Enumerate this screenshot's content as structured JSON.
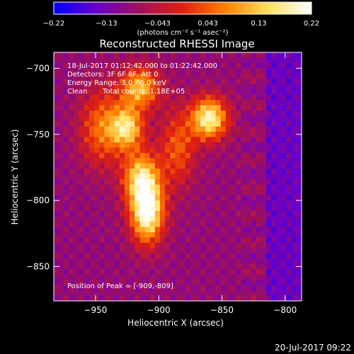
{
  "chart_data": {
    "type": "heatmap",
    "title": "Reconstructed RHESSI Image",
    "xlabel": "Heliocentric X (arcsec)",
    "ylabel": "Heliocentric Y (arcsec)",
    "xlim": [
      -983,
      -787
    ],
    "ylim": [
      -876,
      -688
    ],
    "xticks": [
      -950,
      -900,
      -850,
      -800
    ],
    "yticks": [
      -700,
      -750,
      -800,
      -850
    ],
    "xtick_labels": [
      "−950",
      "−900",
      "−850",
      "−800"
    ],
    "ytick_labels": [
      "−700",
      "−750",
      "−800",
      "−850"
    ],
    "colorbar": {
      "min": -0.22,
      "max": 0.22,
      "ticks": [
        -0.22,
        -0.13,
        -0.043,
        0.043,
        0.13,
        0.22
      ],
      "tick_labels": [
        "−0.22",
        "−0.13",
        "−0.043",
        "0.043",
        "0.13",
        "0.22"
      ],
      "unit_label": "(photons cm⁻² s⁻¹ asec⁻²)",
      "colormap": [
        "#0000ff",
        "#6a00c8",
        "#a0105a",
        "#e02010",
        "#ff8000",
        "#ffe060",
        "#ffffff"
      ]
    },
    "background_level": -0.09,
    "sources": [
      {
        "x": -909,
        "y": -809,
        "peak": 0.22,
        "sigma_x": 9,
        "sigma_y": 16
      },
      {
        "x": -914,
        "y": -783,
        "peak": 0.14,
        "sigma_x": 10,
        "sigma_y": 14
      },
      {
        "x": -925,
        "y": -745,
        "peak": 0.14,
        "sigma_x": 9,
        "sigma_y": 11
      },
      {
        "x": -915,
        "y": -715,
        "peak": 0.12,
        "sigma_x": 11,
        "sigma_y": 11
      },
      {
        "x": -860,
        "y": -738,
        "peak": 0.19,
        "sigma_x": 10,
        "sigma_y": 11
      },
      {
        "x": -885,
        "y": -760,
        "peak": 0.04,
        "sigma_x": 10,
        "sigma_y": 20
      },
      {
        "x": -945,
        "y": -745,
        "peak": 0.06,
        "sigma_x": 12,
        "sigma_y": 20
      }
    ],
    "annotations": {
      "time_range": "18-Jul-2017 01:12:42.000 to 01:22:42.000",
      "detectors": "Detectors: 3F 6F 8F, Att 0",
      "energy": "Energy Range: 3.0 - 6.0 keV",
      "clean_label": "Clean",
      "total_counts": "Total counts: 1.18E+05",
      "peak_position": "Position of Peak = [-909,-809]"
    }
  },
  "footer": {
    "timestamp": "20-Jul-2017 09:22"
  }
}
